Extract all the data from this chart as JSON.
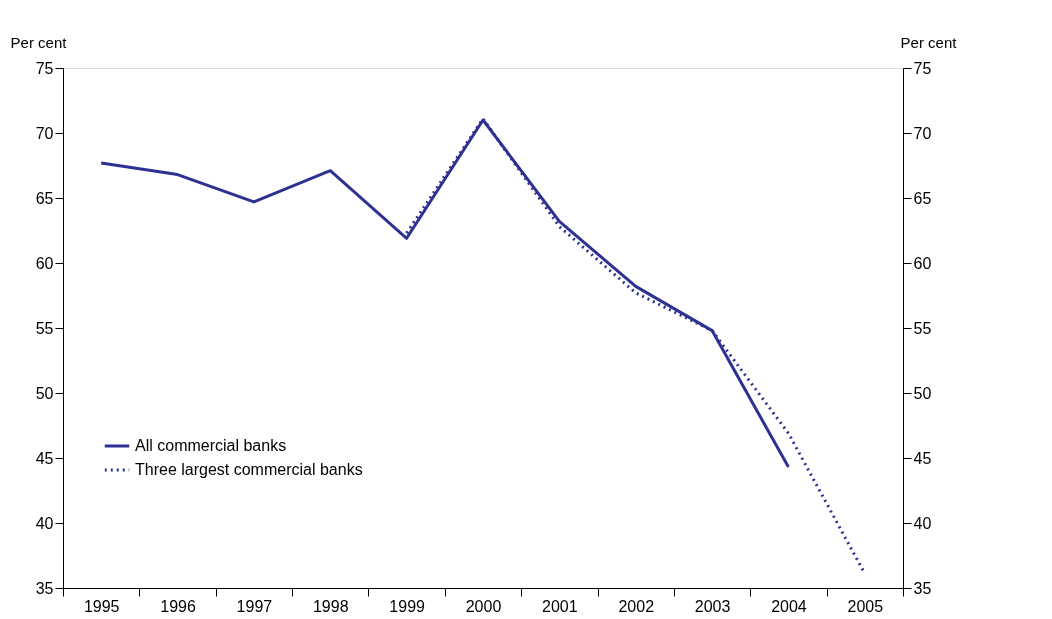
{
  "chart_data": {
    "type": "line",
    "ylabel": "Per cent",
    "y2label": "Per cent",
    "categories": [
      "1995",
      "1996",
      "1997",
      "1998",
      "1999",
      "2000",
      "2001",
      "2002",
      "2003",
      "2004",
      "2005"
    ],
    "series": [
      {
        "name": "All commercial banks",
        "color": "#2e3192",
        "line_style": "solid",
        "values": [
          67.7,
          66.8,
          64.7,
          67.1,
          61.9,
          71.0,
          63.2,
          58.2,
          54.8,
          44.3,
          null
        ]
      },
      {
        "name": "Three largest commercial banks",
        "color": "#2e3192",
        "line_style": "dotted",
        "values": [
          null,
          null,
          null,
          null,
          62.3,
          71.1,
          62.8,
          57.7,
          54.8,
          46.9,
          36.1
        ]
      }
    ],
    "ylim": [
      35,
      75
    ],
    "yticks": [
      35,
      40,
      45,
      50,
      55,
      60,
      65,
      70,
      75
    ],
    "y2lim": [
      35,
      75
    ],
    "y2ticks": [
      35,
      40,
      45,
      50,
      55,
      60,
      65,
      70,
      75
    ],
    "grid": false,
    "legend": "left",
    "marker": "none"
  }
}
